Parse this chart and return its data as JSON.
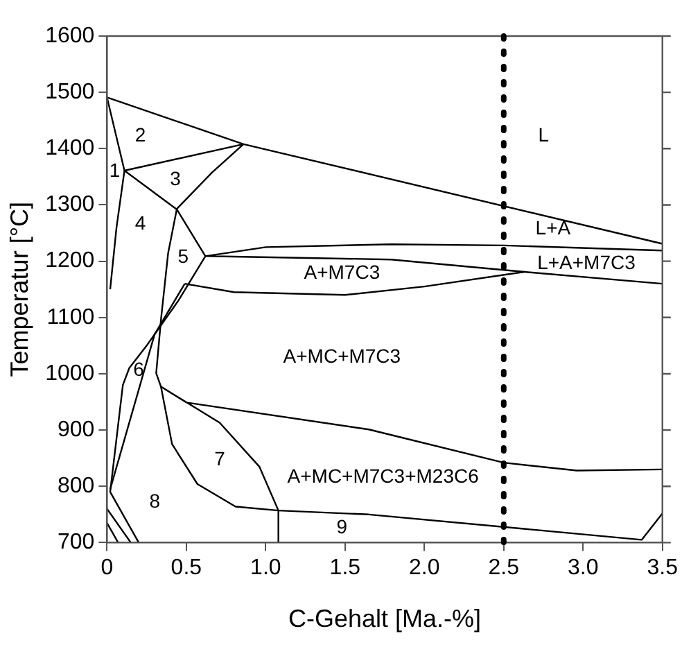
{
  "chart_data": {
    "type": "line",
    "xlabel": "C-Gehalt [Ma.-%]",
    "ylabel": "Temperatur [°C]",
    "xlim": [
      0,
      3.5
    ],
    "xticks": [
      0,
      {
        "value": 0.5,
        "label": "0.5"
      },
      {
        "value": 1,
        "label": "1.0"
      },
      {
        "value": 1.5,
        "label": "1.5"
      },
      {
        "value": 2,
        "label": "2.0"
      },
      {
        "value": 2.5,
        "label": "2.5"
      },
      {
        "value": 3,
        "label": "3.0"
      },
      {
        "value": 3.5,
        "label": "3.5"
      }
    ],
    "ylim": [
      700,
      1600
    ],
    "yticks": [
      700,
      800,
      900,
      1000,
      1100,
      1200,
      1300,
      1400,
      1500,
      1600
    ],
    "grid": false,
    "legend": false,
    "marker": "none",
    "line_style": "solid",
    "series": [
      {
        "color": "#000000",
        "x": [
          3.5,
          0.86,
          0,
          0.11,
          0.06,
          0.02
        ],
        "values": [
          1231,
          1408,
          1491,
          1361,
          1260,
          1150
        ]
      },
      {
        "color": "#000000",
        "x": [
          0.86,
          0.11,
          0.44,
          0.62
        ],
        "values": [
          1408,
          1361,
          1292,
          1209
        ]
      },
      {
        "color": "#000000",
        "x": [
          0.86,
          0.66,
          0.44,
          0.385,
          0.34,
          0.31,
          0.34,
          0.41,
          0.57,
          0.81,
          1.08,
          1.65,
          3.37,
          3.5
        ],
        "values": [
          1408,
          1357,
          1293,
          1214,
          1096,
          1001,
          977,
          875,
          804,
          764,
          757,
          750,
          705,
          752
        ]
      },
      {
        "color": "#000000",
        "x": [
          3.5,
          2.5,
          1.79,
          1.0,
          0.62,
          1.79,
          2.63,
          3.5
        ],
        "values": [
          1219,
          1228,
          1230,
          1225,
          1209,
          1203,
          1181,
          1160
        ]
      },
      {
        "color": "#000000",
        "x": [
          0.49,
          0.8,
          1.5,
          2.0,
          2.63
        ],
        "values": [
          1160,
          1145,
          1140,
          1155,
          1181
        ]
      },
      {
        "color": "#000000",
        "x": [
          0.62,
          0.45,
          0.25,
          0.14,
          0.1,
          0.02
        ],
        "values": [
          1209,
          1130,
          1050,
          1010,
          980,
          790
        ]
      },
      {
        "color": "#000000",
        "x": [
          0.49,
          0.3,
          0.02
        ],
        "values": [
          1160,
          1070,
          795
        ]
      },
      {
        "color": "#000000",
        "x": [
          1.08,
          1.08,
          0.96,
          0.71,
          0.34,
          0.5,
          1.65,
          2.5,
          2.96,
          3.5
        ],
        "values": [
          700,
          757,
          835,
          913,
          977,
          949,
          901,
          842,
          828,
          830
        ]
      },
      {
        "color": "#000000",
        "x": [
          0.02,
          0.2
        ],
        "values": [
          790,
          700
        ]
      },
      {
        "color": "#000000",
        "x": [
          0,
          0.15
        ],
        "values": [
          760,
          700
        ]
      },
      {
        "color": "#000000",
        "x": [
          0,
          0.07
        ],
        "values": [
          735,
          700
        ]
      }
    ],
    "ref_lines": [
      {
        "axis": "x",
        "value": 2.5,
        "color": "#000000",
        "line_style": "dotted"
      }
    ],
    "annotations": [
      "L",
      "L+A",
      "L+A+M7C3",
      "A+M7C3",
      "A+MC+M7C3",
      "A+MC+M7C3+M23C6",
      "1",
      "2",
      "3",
      "4",
      "5",
      "6",
      "7",
      "8",
      "9"
    ]
  }
}
